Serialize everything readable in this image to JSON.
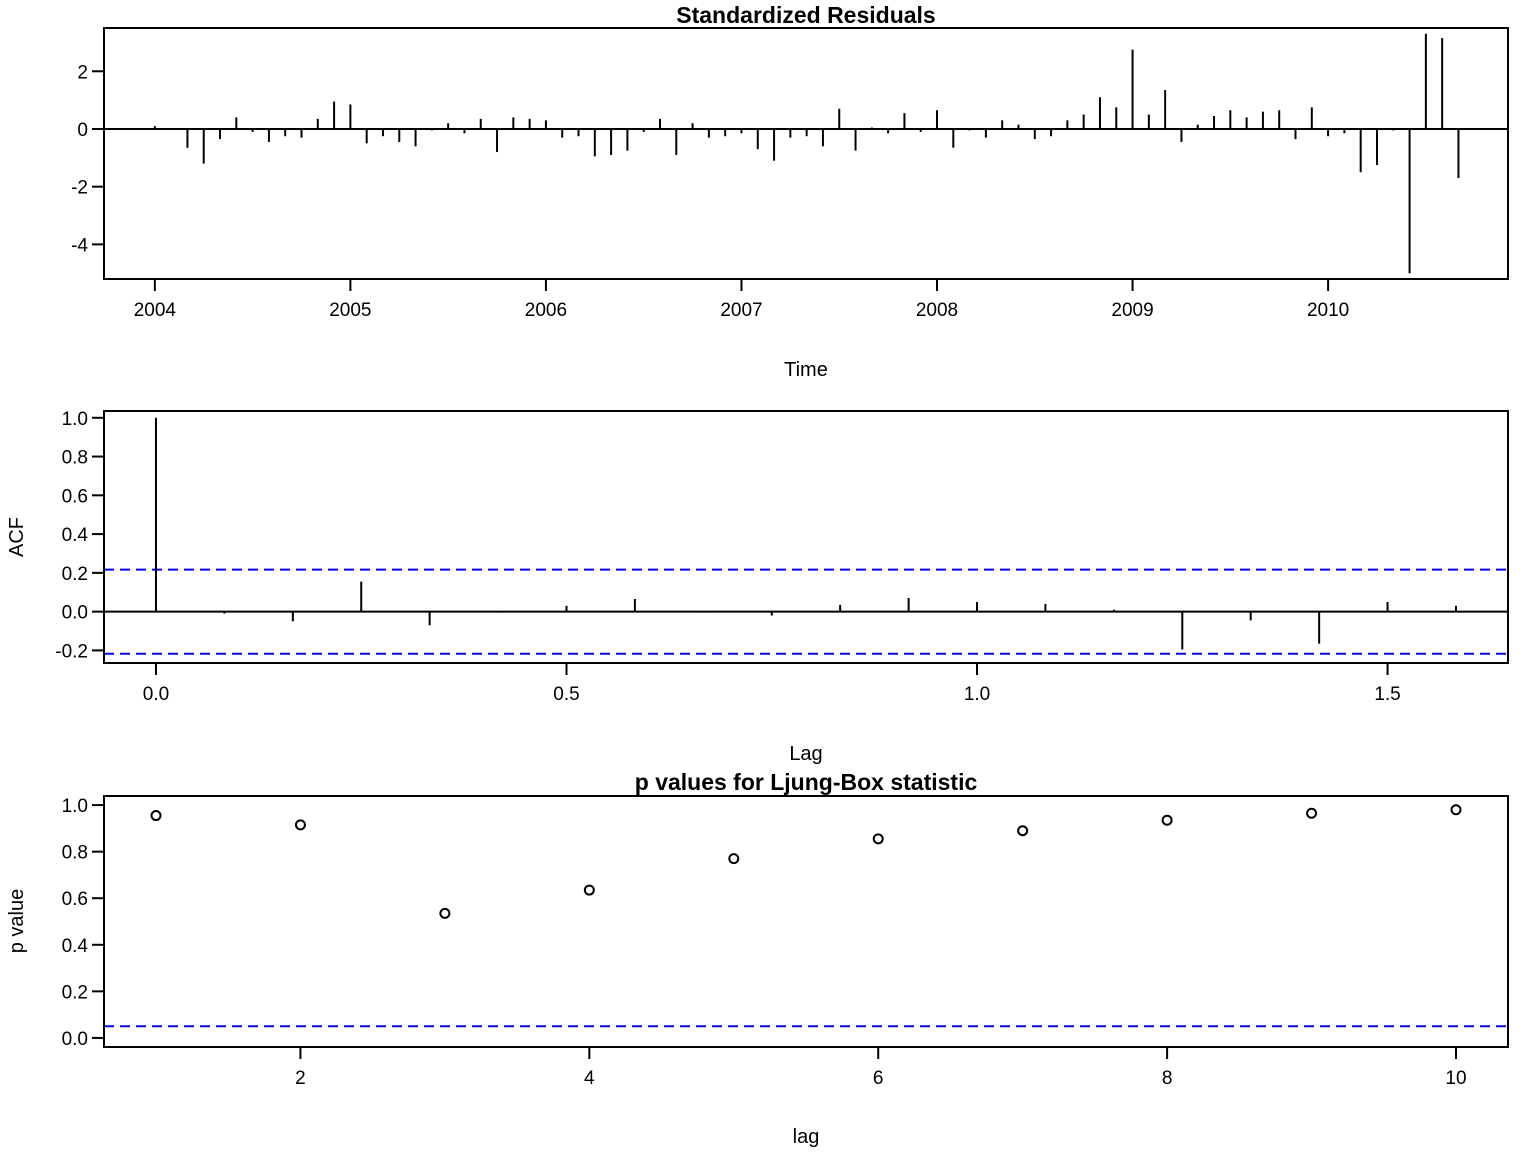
{
  "colors": {
    "ink": "#000000",
    "reference_line": "#0000ff",
    "background": "#ffffff"
  },
  "chart_data": [
    {
      "id": "residuals",
      "type": "bar",
      "style": "vertical-spikes",
      "title": "Standardized Residuals",
      "xlabel": "Time",
      "ylabel": "",
      "x_ticks": [
        2004,
        2005,
        2006,
        2007,
        2008,
        2009,
        2010
      ],
      "y_ticks": [
        -4,
        -2,
        0,
        2
      ],
      "y_tick_labels": [
        "-4",
        "-2",
        "0",
        "2"
      ],
      "xlim": [
        2003.74,
        2010.92
      ],
      "ylim": [
        -5.2,
        3.5
      ],
      "zero_line": true,
      "grid": false,
      "start": 2004.0,
      "frequency": 12,
      "values": [
        0.1,
        0.0,
        -0.65,
        -1.2,
        -0.35,
        0.4,
        -0.1,
        -0.45,
        -0.25,
        -0.3,
        0.35,
        0.95,
        0.85,
        -0.5,
        -0.25,
        -0.45,
        -0.6,
        -0.05,
        0.2,
        -0.15,
        0.35,
        -0.8,
        0.4,
        0.35,
        0.3,
        -0.3,
        -0.25,
        -0.95,
        -0.9,
        -0.75,
        -0.1,
        0.35,
        -0.9,
        0.2,
        -0.3,
        -0.25,
        -0.15,
        -0.7,
        -1.1,
        -0.3,
        -0.25,
        -0.6,
        0.7,
        -0.75,
        0.05,
        -0.15,
        0.55,
        -0.1,
        0.65,
        -0.65,
        -0.05,
        -0.3,
        0.3,
        0.15,
        -0.35,
        -0.25,
        0.3,
        0.5,
        1.1,
        0.75,
        2.75,
        0.5,
        1.35,
        -0.45,
        0.15,
        0.45,
        0.65,
        0.4,
        0.6,
        0.65,
        -0.35,
        0.75,
        -0.25,
        -0.15,
        -1.5,
        -1.25,
        -0.05,
        -5.0,
        3.3,
        3.15,
        -1.7
      ]
    },
    {
      "id": "acf",
      "type": "bar",
      "style": "vertical-spikes",
      "title": "",
      "xlabel": "Lag",
      "ylabel": "ACF",
      "x_ticks": [
        0.0,
        0.5,
        1.0,
        1.5
      ],
      "x_tick_labels": [
        "0.0",
        "0.5",
        "1.0",
        "1.5"
      ],
      "y_ticks": [
        -0.2,
        0.0,
        0.2,
        0.4,
        0.6,
        0.8,
        1.0
      ],
      "y_tick_labels": [
        "-0.2",
        "0.0",
        "0.2",
        "0.4",
        "0.6",
        "0.8",
        "1.0"
      ],
      "xlim": [
        -0.0633,
        1.6467
      ],
      "ylim": [
        -0.265,
        1.035
      ],
      "zero_line": true,
      "confidence_bounds": [
        0.217,
        -0.217
      ],
      "grid": false,
      "lags": [
        0.0,
        0.0833,
        0.1667,
        0.25,
        0.3333,
        0.4167,
        0.5,
        0.5833,
        0.6667,
        0.75,
        0.8333,
        0.9167,
        1.0,
        1.0833,
        1.1667,
        1.25,
        1.3333,
        1.4167,
        1.5,
        1.5833
      ],
      "values": [
        1.0,
        -0.01,
        -0.05,
        0.155,
        -0.07,
        -0.005,
        0.03,
        0.065,
        -0.005,
        -0.02,
        0.035,
        0.07,
        0.05,
        0.04,
        0.01,
        -0.195,
        -0.045,
        -0.165,
        0.05,
        0.03
      ]
    },
    {
      "id": "ljung_box",
      "type": "scatter",
      "title": "p values for Ljung-Box statistic",
      "xlabel": "lag",
      "ylabel": "p value",
      "x_ticks": [
        2,
        4,
        6,
        8,
        10
      ],
      "y_ticks": [
        0.0,
        0.2,
        0.4,
        0.6,
        0.8,
        1.0
      ],
      "y_tick_labels": [
        "0.0",
        "0.2",
        "0.4",
        "0.6",
        "0.8",
        "1.0"
      ],
      "xlim": [
        0.64,
        10.36
      ],
      "ylim": [
        -0.039,
        1.039
      ],
      "reference_line": 0.05,
      "grid": false,
      "x": [
        1,
        2,
        3,
        4,
        5,
        6,
        7,
        8,
        9,
        10
      ],
      "y": [
        0.955,
        0.915,
        0.535,
        0.635,
        0.77,
        0.855,
        0.89,
        0.935,
        0.965,
        0.98
      ]
    }
  ]
}
